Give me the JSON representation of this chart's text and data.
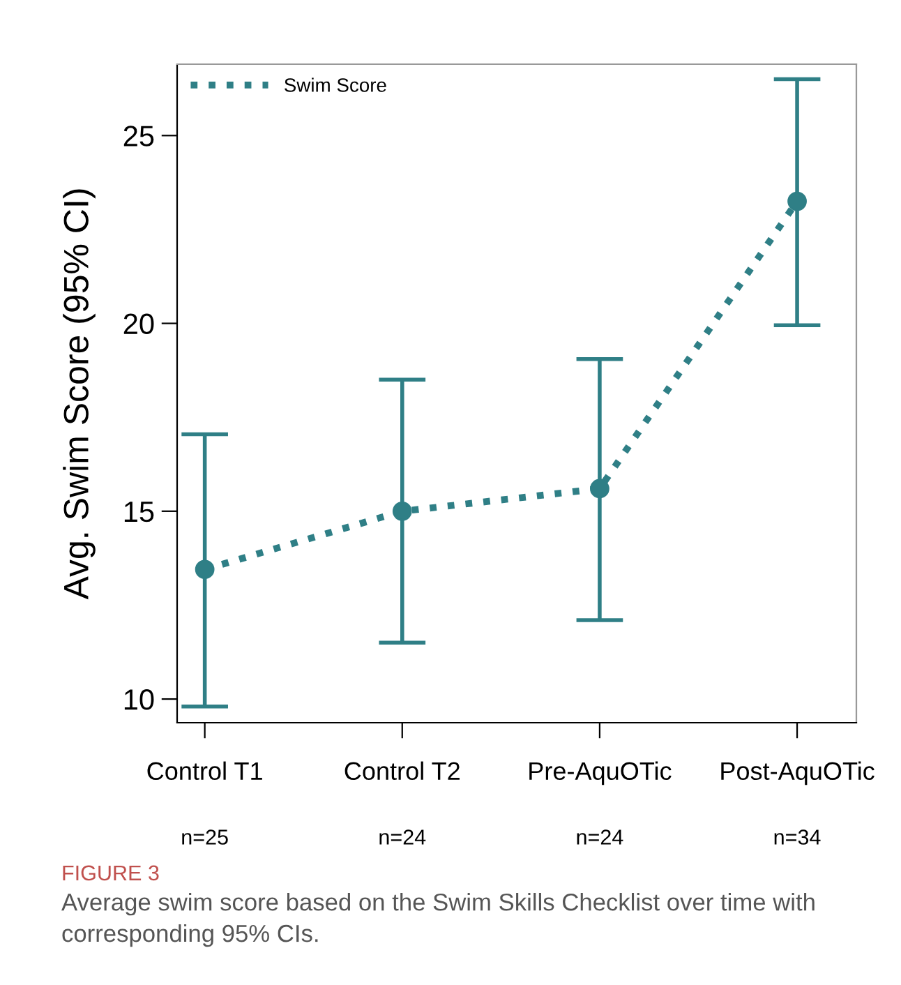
{
  "chart_data": {
    "type": "line",
    "ylabel": "Avg. Swim Score (95% CI)",
    "categories": [
      "Control T1",
      "Control T2",
      "Pre-AquOTic",
      "Post-AquOTic"
    ],
    "series": [
      {
        "name": "Swim Score",
        "color": "#2f7f86",
        "values": [
          13.45,
          15.0,
          15.6,
          23.25
        ],
        "errors": [
          [
            9.8,
            17.05
          ],
          [
            11.5,
            18.5
          ],
          [
            12.1,
            19.05
          ],
          [
            19.95,
            26.5
          ]
        ]
      }
    ],
    "ylim": [
      9.37,
      26.9
    ],
    "yticks": [
      10,
      15,
      20,
      25
    ],
    "marker": "circle",
    "line_style": "dotted",
    "legend": "top left",
    "grid": false,
    "annotations": [
      "n=25",
      "n=24",
      "n=24",
      "n=34",
      "FIGURE 3",
      "Average swim score based on the Swim Skills Checklist over time with corresponding 95% CIs."
    ]
  }
}
